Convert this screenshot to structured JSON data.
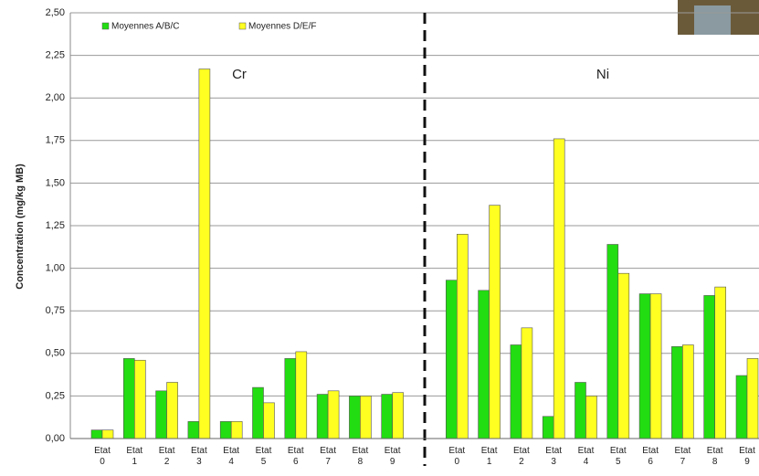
{
  "chart_data": {
    "type": "bar",
    "y_label": "Concentration (mg/kg MB)",
    "annotations": [
      "Cr",
      "Ni"
    ],
    "categories": [
      "Etat 0",
      "Etat 1",
      "Etat 2",
      "Etat 3",
      "Etat 4",
      "Etat 5",
      "Etat 6",
      "Etat 7",
      "Etat 8",
      "Etat 9",
      null,
      "Etat 0",
      "Etat 1",
      "Etat 2",
      "Etat 3",
      "Etat 4",
      "Etat 5",
      "Etat 6",
      "Etat 7",
      "Etat 8",
      "Etat 9"
    ],
    "series": [
      {
        "name": "Moyennes A/B/C",
        "color": "#22dd11",
        "values": [
          0.05,
          0.47,
          0.28,
          0.1,
          0.1,
          0.3,
          0.47,
          0.26,
          0.25,
          0.26,
          null,
          0.93,
          0.87,
          0.55,
          0.13,
          0.33,
          1.14,
          0.85,
          0.54,
          0.84,
          0.37
        ]
      },
      {
        "name": "Moyennes D/E/F",
        "color": "#ffff22",
        "values": [
          0.05,
          0.46,
          0.33,
          2.17,
          0.1,
          0.21,
          0.51,
          0.28,
          0.25,
          0.27,
          null,
          1.2,
          1.37,
          0.65,
          1.76,
          0.25,
          0.97,
          0.85,
          0.55,
          0.89,
          0.47
        ]
      }
    ],
    "ylim": [
      0,
      2.5
    ],
    "yticks": [
      {
        "value": 0,
        "label": "0,00"
      },
      {
        "value": 0.25,
        "label": "0,25"
      },
      {
        "value": 0.5,
        "label": "0,50"
      },
      {
        "value": 0.75,
        "label": "0,75"
      },
      {
        "value": 1,
        "label": "1,00"
      },
      {
        "value": 1.25,
        "label": "1,25"
      },
      {
        "value": 1.5,
        "label": "1,50"
      },
      {
        "value": 1.75,
        "label": "1,75"
      },
      {
        "value": 2,
        "label": "2,00"
      },
      {
        "value": 2.25,
        "label": "2,25"
      },
      {
        "value": 2.5,
        "label": "2,50"
      }
    ],
    "grid": true
  }
}
